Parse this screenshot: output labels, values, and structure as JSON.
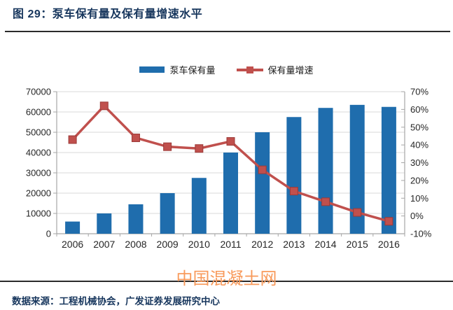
{
  "figure": {
    "title": "图 29：泵车保有量及保有量增速水平",
    "watermark": "中国混凝土网",
    "source_note": "数据来源：工程机械协会，广发证券发展研究中心"
  },
  "legend": [
    {
      "label": "泵车保有量",
      "type": "bar",
      "color": "#1F6DAD"
    },
    {
      "label": "保有量增速",
      "type": "line",
      "color": "#C0504D"
    }
  ],
  "chart_data": {
    "type": "bar+line combo",
    "title": "泵车保有量及保有量增速水平",
    "categories": [
      "2006",
      "2007",
      "2008",
      "2009",
      "2010",
      "2011",
      "2012",
      "2013",
      "2014",
      "2015",
      "2016"
    ],
    "series": [
      {
        "name": "泵车保有量",
        "type": "bar",
        "axis": "left",
        "color": "#1F6DAD",
        "values": [
          6000,
          10000,
          14500,
          20000,
          27500,
          40000,
          50000,
          57500,
          62000,
          63500,
          62500
        ]
      },
      {
        "name": "保有量增速",
        "type": "line",
        "axis": "right",
        "color": "#C0504D",
        "marker": "square",
        "marker_border": "#9C3A38",
        "values_pct": [
          43,
          62,
          44,
          39,
          38,
          42,
          26,
          14,
          8,
          2,
          -3
        ]
      }
    ],
    "left_axis": {
      "min": 0,
      "max": 70000,
      "step": 10000,
      "tick_labels": [
        "0",
        "10000",
        "20000",
        "30000",
        "40000",
        "50000",
        "60000",
        "70000"
      ]
    },
    "right_axis": {
      "min": -10,
      "max": 70,
      "step": 10,
      "tick_labels": [
        "-10%",
        "0%",
        "10%",
        "20%",
        "30%",
        "40%",
        "50%",
        "60%",
        "70%"
      ]
    },
    "grid": true,
    "legend_position": "top-center",
    "colors": {
      "grid": "#D9D9D9",
      "axis": "#A6A6A6",
      "text": "#262626"
    }
  }
}
